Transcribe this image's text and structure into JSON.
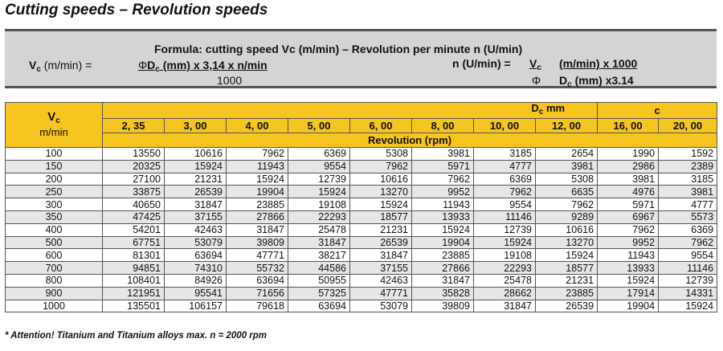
{
  "title": "Cutting speeds – Revolution speeds",
  "formula": {
    "heading": "Formula: cutting speed Vc (m/min) – Revolution per minute  n (U/min)",
    "left": {
      "vc_symbol": "V",
      "vc_sub": "c",
      "vc_unit": "(m/min) =",
      "numerator_phi": "Φ",
      "numerator_dc": "D",
      "numerator_dc_sub": "c",
      "numerator_rest": " (mm) x 3,14 x n/min",
      "denominator": "1000"
    },
    "right": {
      "lhs": "n (U/min) =",
      "frac1_top": "V",
      "frac1_top_sub": "c",
      "frac1_bottom": "Φ",
      "frac2_top": "(m/min) x 1000",
      "frac2_bottom_dc": "D",
      "frac2_bottom_sub": "c",
      "frac2_bottom_rest": " (mm) x3.14"
    }
  },
  "table": {
    "corner_symbol": "V",
    "corner_sub": "c",
    "corner_unit": "m/min",
    "dc_header": "D",
    "dc_header_sub": "c",
    "dc_header_unit": " mm",
    "c_header": "c",
    "diameters": [
      "2, 35",
      "3, 00",
      "4, 00",
      "5, 00",
      "6, 00",
      "8, 00",
      "10, 00",
      "12, 00",
      "16, 00",
      "20, 00"
    ],
    "revolution_label": "Revolution (rpm)",
    "rows": [
      {
        "vc": "100",
        "values": [
          "13550",
          "10616",
          "7962",
          "6369",
          "5308",
          "3981",
          "3185",
          "2654",
          "1990",
          "1592"
        ]
      },
      {
        "vc": "150",
        "values": [
          "20325",
          "15924",
          "11943",
          "9554",
          "7962",
          "5971",
          "4777",
          "3981",
          "2986",
          "2389"
        ]
      },
      {
        "vc": "200",
        "values": [
          "27100",
          "21231",
          "15924",
          "12739",
          "10616",
          "7962",
          "6369",
          "5308",
          "3981",
          "3185"
        ]
      },
      {
        "vc": "250",
        "values": [
          "33875",
          "26539",
          "19904",
          "15924",
          "13270",
          "9952",
          "7962",
          "6635",
          "4976",
          "3981"
        ]
      },
      {
        "vc": "300",
        "values": [
          "40650",
          "31847",
          "23885",
          "19108",
          "15924",
          "11943",
          "9554",
          "7962",
          "5971",
          "4777"
        ]
      },
      {
        "vc": "350",
        "values": [
          "47425",
          "37155",
          "27866",
          "22293",
          "18577",
          "13933",
          "11146",
          "9289",
          "6967",
          "5573"
        ]
      },
      {
        "vc": "400",
        "values": [
          "54201",
          "42463",
          "31847",
          "25478",
          "21231",
          "15924",
          "12739",
          "10616",
          "7962",
          "6369"
        ]
      },
      {
        "vc": "500",
        "values": [
          "67751",
          "53079",
          "39809",
          "31847",
          "26539",
          "19904",
          "15924",
          "13270",
          "9952",
          "7962"
        ]
      },
      {
        "vc": "600",
        "values": [
          "81301",
          "63694",
          "47771",
          "38217",
          "31847",
          "23885",
          "19108",
          "15924",
          "11943",
          "9554"
        ]
      },
      {
        "vc": "700",
        "values": [
          "94851",
          "74310",
          "55732",
          "44586",
          "37155",
          "27866",
          "22293",
          "18577",
          "13933",
          "11146"
        ]
      },
      {
        "vc": "800",
        "values": [
          "108401",
          "84926",
          "63694",
          "50955",
          "42463",
          "31847",
          "25478",
          "21231",
          "15924",
          "12739"
        ]
      },
      {
        "vc": "900",
        "values": [
          "121951",
          "95541",
          "71656",
          "57325",
          "47771",
          "35828",
          "28662",
          "23885",
          "17914",
          "14331"
        ]
      },
      {
        "vc": "1000",
        "values": [
          "135501",
          "106157",
          "79618",
          "63694",
          "53079",
          "39809",
          "31847",
          "26539",
          "19904",
          "15924"
        ]
      }
    ]
  },
  "note": "* Attention! Titanium and Titanium alloys max. n = 2000 rpm",
  "colors": {
    "header_yellow": "#f7c520",
    "formula_bg": "#d4d4d4",
    "row_stripe": "#e6e6e6"
  }
}
